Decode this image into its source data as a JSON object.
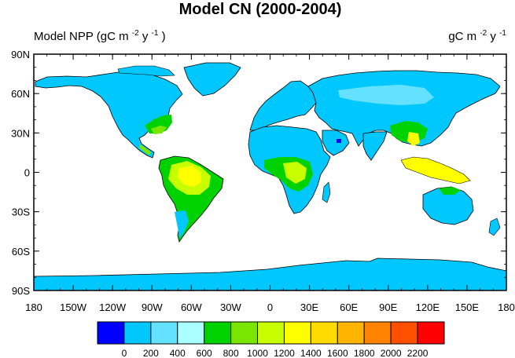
{
  "title": "Model CN (2000-2004)",
  "left_label": "Model NPP (gC m",
  "right_label": "gC m",
  "unit_sup_m": "-2",
  "unit_y": " y",
  "unit_sup_y": "-1",
  "unit_paren_close": ")",
  "lat_ticks": [
    "90N",
    "60N",
    "30N",
    "0",
    "30S",
    "60S",
    "90S"
  ],
  "lon_ticks": [
    "180",
    "150W",
    "120W",
    "90W",
    "60W",
    "30W",
    "0",
    "30E",
    "60E",
    "90E",
    "120E",
    "150E",
    "180"
  ],
  "colorbar": {
    "colors": [
      "#0000ff",
      "#00c8ff",
      "#64e1ff",
      "#aaffff",
      "#00d200",
      "#7ae600",
      "#c8ff00",
      "#ffff00",
      "#ffdc00",
      "#ffb400",
      "#ff8200",
      "#ff5000",
      "#ff0000"
    ],
    "labels": [
      "0",
      "200",
      "400",
      "600",
      "800",
      "1000",
      "1200",
      "1400",
      "1600",
      "1800",
      "2000",
      "2200"
    ]
  },
  "colors": {
    "ocean": "#ffffff",
    "low_npp": "#00c8ff",
    "coast": "#000000"
  }
}
